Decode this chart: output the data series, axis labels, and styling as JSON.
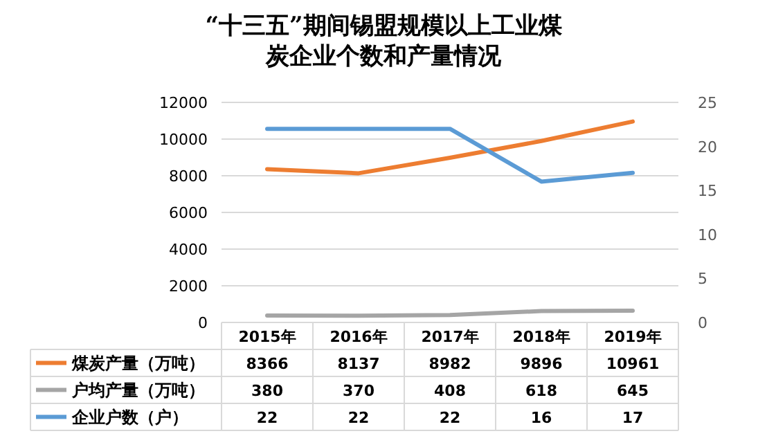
{
  "chart_data": {
    "type": "line",
    "title": "“十三五”期间锡盟规模以上工业煤炭企业个数和产量情况",
    "categories": [
      "2015年",
      "2016年",
      "2017年",
      "2018年",
      "2019年"
    ],
    "series": [
      {
        "name": "煤炭产量（万吨）",
        "color": "#ed7d31",
        "values": [
          8366,
          8137,
          8982,
          9896,
          10961
        ]
      },
      {
        "name": "户均产量（万吨）",
        "color": "#a5a5a5",
        "values": [
          380,
          370,
          408,
          618,
          645
        ]
      },
      {
        "name": "企业户数（户）",
        "color": "#5b9bd5",
        "values": [
          22,
          22,
          22,
          16,
          17
        ],
        "axis": "y2"
      }
    ],
    "ylim": [
      0,
      12000
    ],
    "yticks": [
      0,
      2000,
      4000,
      6000,
      8000,
      10000,
      12000
    ],
    "y2lim": [
      0,
      25
    ],
    "y2ticks": [
      0,
      5,
      10,
      15,
      20,
      25
    ],
    "grid": "y",
    "legend": "bottom",
    "data_labels": true
  }
}
